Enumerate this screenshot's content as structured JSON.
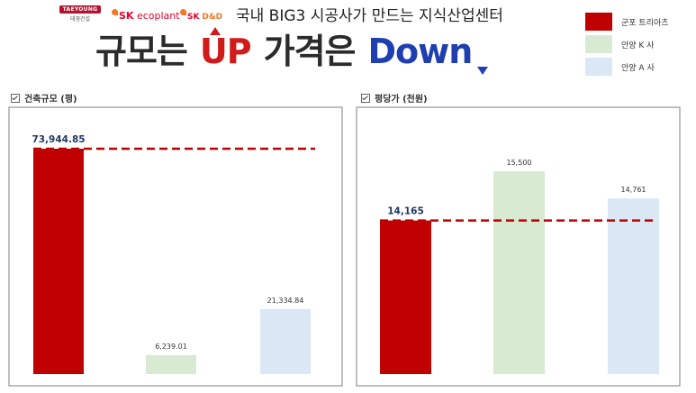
{
  "logos": {
    "taeyoung": "TAEYOUNG",
    "taeyoung_sub": "태영건설",
    "sk_ecoplant_sk": "SK",
    "sk_ecoplant_rest": "ecoplant",
    "sk_dnd_sk": "SK",
    "sk_dnd_rest": "D&D"
  },
  "header": {
    "title": "국내 BIG3 시공사가 만드는 지식산업센터",
    "headline_part1": "규모는",
    "headline_up": "UP",
    "headline_part2": "가격은",
    "headline_down": "Down"
  },
  "legend": [
    {
      "label": "군포 트리아츠",
      "color": "#c00000"
    },
    {
      "label": "안양 K 사",
      "color": "#d9ead3"
    },
    {
      "label": "안양 A 사",
      "color": "#dae8f5"
    }
  ],
  "chart_data": [
    {
      "type": "bar",
      "title": "건축규모 (평)",
      "categories": [
        "군포 트리아츠",
        "안양 K 사",
        "안양 A 사"
      ],
      "values": [
        73944.85,
        6239.01,
        21334.84
      ],
      "value_labels": [
        "73,944.85",
        "6,239.01",
        "21,334.84"
      ],
      "colors": [
        "#c00000",
        "#d9ead3",
        "#dae8f5"
      ],
      "reference_line": 73944.85,
      "ylim": [
        0,
        73944.85
      ],
      "xlabel": "",
      "ylabel": "",
      "grid": false
    },
    {
      "type": "bar",
      "title": "평당가 (천원)",
      "categories": [
        "군포 트리아츠",
        "안양 K 사",
        "안양 A 사"
      ],
      "values": [
        14165,
        15500,
        14761
      ],
      "value_labels": [
        "14,165",
        "15,500",
        "14,761"
      ],
      "colors": [
        "#c00000",
        "#d9ead3",
        "#dae8f5"
      ],
      "reference_line": 14165,
      "ylim": [
        10000,
        15500
      ],
      "xlabel": "",
      "ylabel": "",
      "grid": false
    }
  ]
}
